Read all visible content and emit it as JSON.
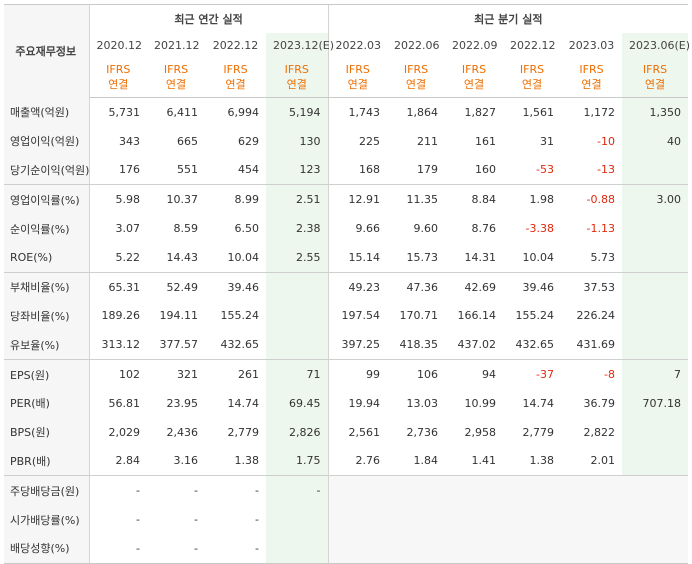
{
  "header": {
    "row_label": "주요재무정보",
    "annual_title": "최근 연간 실적",
    "quarter_title": "최근 분기 실적"
  },
  "periods": [
    {
      "date": "2020.12",
      "line1": "IFRS",
      "line2": "연결"
    },
    {
      "date": "2021.12",
      "line1": "IFRS",
      "line2": "연결"
    },
    {
      "date": "2022.12",
      "line1": "IFRS",
      "line2": "연결"
    },
    {
      "date": "2023.12(E)",
      "line1": "IFRS",
      "line2": "연결"
    },
    {
      "date": "2022.03",
      "line1": "IFRS",
      "line2": "연결"
    },
    {
      "date": "2022.06",
      "line1": "IFRS",
      "line2": "연결"
    },
    {
      "date": "2022.09",
      "line1": "IFRS",
      "line2": "연결"
    },
    {
      "date": "2022.12",
      "line1": "IFRS",
      "line2": "연결"
    },
    {
      "date": "2023.03",
      "line1": "IFRS",
      "line2": "연결"
    },
    {
      "date": "2023.06(E)",
      "line1": "IFRS",
      "line2": "연결"
    }
  ],
  "rows": [
    {
      "label": "매출액(억원)",
      "values": [
        "5,731",
        "6,411",
        "6,994",
        "5,194",
        "1,743",
        "1,864",
        "1,827",
        "1,561",
        "1,172",
        "1,350"
      ]
    },
    {
      "label": "영업이익(억원)",
      "values": [
        "343",
        "665",
        "629",
        "130",
        "225",
        "211",
        "161",
        "31",
        "-10",
        "40"
      ]
    },
    {
      "label": "당기순이익(억원)",
      "values": [
        "176",
        "551",
        "454",
        "123",
        "168",
        "179",
        "160",
        "-53",
        "-13",
        ""
      ]
    },
    {
      "label": "영업이익률(%)",
      "values": [
        "5.98",
        "10.37",
        "8.99",
        "2.51",
        "12.91",
        "11.35",
        "8.84",
        "1.98",
        "-0.88",
        "3.00"
      ]
    },
    {
      "label": "순이익률(%)",
      "values": [
        "3.07",
        "8.59",
        "6.50",
        "2.38",
        "9.66",
        "9.60",
        "8.76",
        "-3.38",
        "-1.13",
        ""
      ]
    },
    {
      "label": "ROE(%)",
      "values": [
        "5.22",
        "14.43",
        "10.04",
        "2.55",
        "15.14",
        "15.73",
        "14.31",
        "10.04",
        "5.73",
        ""
      ]
    },
    {
      "label": "부채비율(%)",
      "values": [
        "65.31",
        "52.49",
        "39.46",
        "",
        "49.23",
        "47.36",
        "42.69",
        "39.46",
        "37.53",
        ""
      ]
    },
    {
      "label": "당좌비율(%)",
      "values": [
        "189.26",
        "194.11",
        "155.24",
        "",
        "197.54",
        "170.71",
        "166.14",
        "155.24",
        "226.24",
        ""
      ]
    },
    {
      "label": "유보율(%)",
      "values": [
        "313.12",
        "377.57",
        "432.65",
        "",
        "397.25",
        "418.35",
        "437.02",
        "432.65",
        "431.69",
        ""
      ]
    },
    {
      "label": "EPS(원)",
      "values": [
        "102",
        "321",
        "261",
        "71",
        "99",
        "106",
        "94",
        "-37",
        "-8",
        "7"
      ]
    },
    {
      "label": "PER(배)",
      "values": [
        "56.81",
        "23.95",
        "14.74",
        "69.45",
        "19.94",
        "13.03",
        "10.99",
        "14.74",
        "36.79",
        "707.18"
      ]
    },
    {
      "label": "BPS(원)",
      "values": [
        "2,029",
        "2,436",
        "2,779",
        "2,826",
        "2,561",
        "2,736",
        "2,958",
        "2,779",
        "2,822",
        ""
      ]
    },
    {
      "label": "PBR(배)",
      "values": [
        "2.84",
        "3.16",
        "1.38",
        "1.75",
        "2.76",
        "1.84",
        "1.41",
        "1.38",
        "2.01",
        ""
      ]
    },
    {
      "label": "주당배당금(원)",
      "values": [
        "-",
        "-",
        "-",
        "-",
        "",
        "",
        "",
        "",
        "",
        ""
      ]
    },
    {
      "label": "시가배당률(%)",
      "values": [
        "-",
        "-",
        "-",
        "",
        "",
        "",
        "",
        "",
        "",
        ""
      ]
    },
    {
      "label": "배당성향(%)",
      "values": [
        "-",
        "-",
        "-",
        "",
        "",
        "",
        "",
        "",
        "",
        ""
      ]
    }
  ]
}
